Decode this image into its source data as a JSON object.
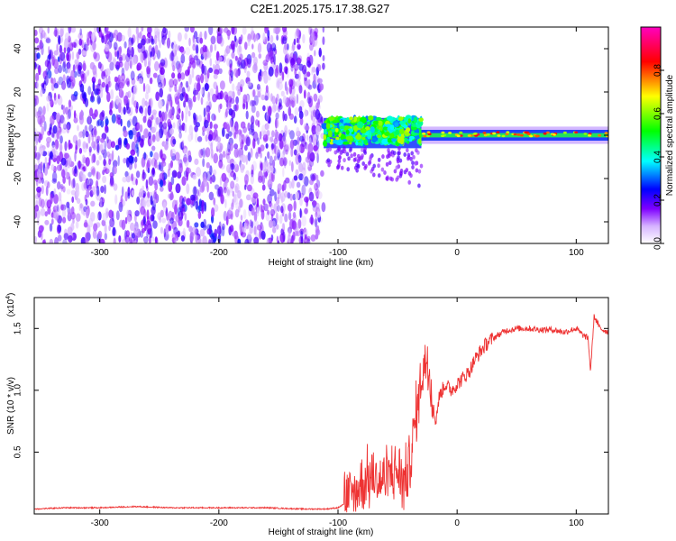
{
  "figure": {
    "title": "C2E1.2025.175.17.38.G27"
  },
  "chart_data": [
    {
      "type": "heatmap",
      "name": "spectrogram",
      "xlabel": "Height of straight line (km)",
      "ylabel": "Frequency (Hz)",
      "xlim": [
        -355,
        127
      ],
      "ylim": [
        -50,
        50
      ],
      "x_ticks": [
        -300,
        -200,
        -100,
        0,
        100
      ],
      "y_ticks": [
        -40,
        -20,
        0,
        20,
        40
      ],
      "colorbar": {
        "label": "Normalized spectral amplitude",
        "range": [
          0,
          1
        ],
        "ticks": [
          0.0,
          0.2,
          0.4,
          0.6,
          0.8
        ],
        "tick_labels": [
          "0.0",
          "0.2",
          "0.4",
          "0.6",
          "0.8"
        ],
        "colormap": [
          "#ffffff",
          "#7f00ff",
          "#0000ff",
          "#00ffff",
          "#00ff00",
          "#ffff00",
          "#ff0000",
          "#ff00c0"
        ]
      },
      "regions": [
        {
          "x_range": [
            -355,
            -112
          ],
          "freq_range": [
            -50,
            50
          ],
          "amplitude": 0.15,
          "description_color": "#8a3cf0"
        },
        {
          "x_range": [
            -112,
            -30
          ],
          "freq_range": [
            -10,
            8
          ],
          "amplitude": 0.45,
          "center_freq": 2
        },
        {
          "x_range": [
            -30,
            127
          ],
          "freq_range": [
            -3,
            4
          ],
          "amplitude": 0.7,
          "center_freq": 0
        }
      ],
      "grid": false
    },
    {
      "type": "line",
      "name": "snr",
      "xlabel": "Height of straight line (km)",
      "ylabel": "SNR (10 * v/v)",
      "y_multiplier_label": "(x10",
      "y_multiplier_exp": "4",
      "y_multiplier_close": ")",
      "xlim": [
        -355,
        127
      ],
      "ylim": [
        0,
        1.75
      ],
      "x_ticks": [
        -300,
        -200,
        -100,
        0,
        100
      ],
      "y_ticks": [
        0.5,
        1.0,
        1.5
      ],
      "y_tick_labels": [
        "0.5",
        "1.0",
        "1.5"
      ],
      "color": "#ee3333",
      "series": [
        {
          "x": [
            -355,
            -330,
            -300,
            -270,
            -240,
            -200,
            -160,
            -130,
            -110,
            -100,
            -95,
            -90,
            -85,
            -80,
            -75,
            -70,
            -65,
            -60,
            -55,
            -50,
            -45,
            -40,
            -35,
            -30,
            -25,
            -20,
            -18,
            -15,
            -10,
            -5,
            0,
            5,
            10,
            15,
            20,
            25,
            30,
            35,
            40,
            50,
            60,
            70,
            80,
            90,
            100,
            105,
            110,
            112,
            115,
            120,
            127
          ],
          "y": [
            0.04,
            0.05,
            0.05,
            0.06,
            0.05,
            0.05,
            0.05,
            0.04,
            0.04,
            0.05,
            0.08,
            0.12,
            0.18,
            0.25,
            0.28,
            0.3,
            0.25,
            0.3,
            0.33,
            0.35,
            0.25,
            0.4,
            0.75,
            1.1,
            1.3,
            0.85,
            0.75,
            0.95,
            1.05,
            1.0,
            1.05,
            1.1,
            1.15,
            1.25,
            1.32,
            1.38,
            1.42,
            1.45,
            1.48,
            1.5,
            1.5,
            1.49,
            1.49,
            1.47,
            1.5,
            1.45,
            1.42,
            1.15,
            1.6,
            1.5,
            1.47
          ]
        }
      ],
      "grid": false
    }
  ]
}
